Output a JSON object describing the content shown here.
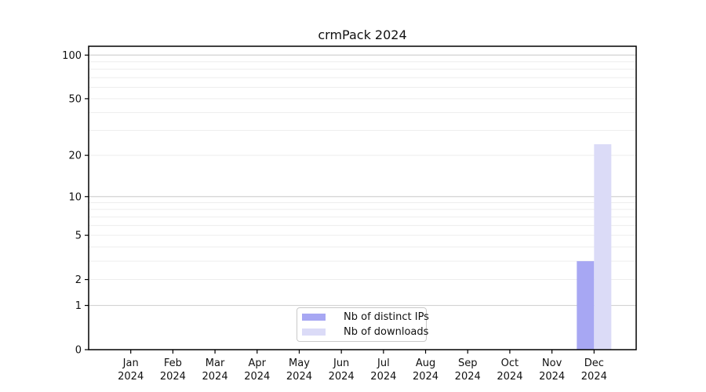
{
  "chart_data": {
    "type": "bar",
    "title": "crmPack 2024",
    "categories": [
      "Jan 2024",
      "Feb 2024",
      "Mar 2024",
      "Apr 2024",
      "May 2024",
      "Jun 2024",
      "Jul 2024",
      "Aug 2024",
      "Sep 2024",
      "Oct 2024",
      "Nov 2024",
      "Dec 2024"
    ],
    "series": [
      {
        "name": "Nb of distinct IPs",
        "color": "#a7a7f3",
        "values": [
          0,
          0,
          0,
          0,
          0,
          0,
          0,
          0,
          0,
          0,
          0,
          3
        ]
      },
      {
        "name": "Nb of downloads",
        "color": "#dbdbf7",
        "values": [
          0,
          0,
          0,
          0,
          0,
          0,
          0,
          0,
          0,
          0,
          0,
          24
        ]
      }
    ],
    "xlabel": "",
    "ylabel": "",
    "yscale": "log1p",
    "ylim": [
      0,
      115
    ],
    "y_ticks": [
      0,
      1,
      2,
      5,
      10,
      20,
      50,
      100
    ],
    "grid": {
      "major": [
        1,
        10,
        100
      ],
      "minor": [
        2,
        3,
        4,
        5,
        6,
        7,
        8,
        9,
        20,
        30,
        40,
        50,
        60,
        70,
        80,
        90
      ],
      "major_color": "#d2d2d2",
      "minor_color": "#ededed"
    },
    "legend": {
      "position": "inside-bottom-center"
    },
    "axis_color": "#000000",
    "tick_label_color": "#111111"
  }
}
